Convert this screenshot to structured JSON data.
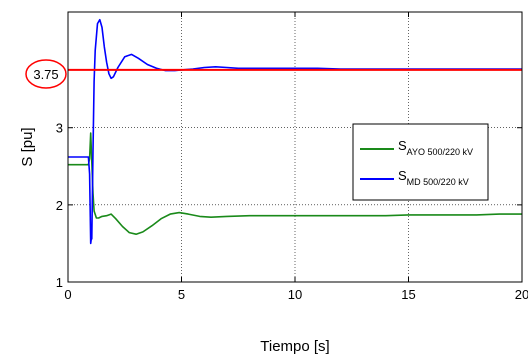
{
  "chart_data": {
    "type": "line",
    "title": "",
    "xlabel": "Tiempo [s]",
    "ylabel": "S [pu]",
    "xlim": [
      0,
      20
    ],
    "ylim": [
      1,
      4.5
    ],
    "xticks": [
      "0",
      "5",
      "10",
      "15",
      "20"
    ],
    "yticks": [
      "1",
      "2",
      "3"
    ],
    "grid": true,
    "legend_position": "right",
    "annotation": {
      "text": "3.75",
      "value": 3.75,
      "color": "#ff0000"
    },
    "series": [
      {
        "name_main": "S",
        "name_sub": "AYO 500/220 kV",
        "color": "#1a8a1a",
        "x": [
          0,
          0.9,
          0.95,
          1.0,
          1.05,
          1.1,
          1.15,
          1.25,
          1.35,
          1.5,
          1.7,
          1.9,
          2.1,
          2.4,
          2.7,
          3.0,
          3.3,
          3.7,
          4.1,
          4.5,
          4.9,
          5.3,
          5.8,
          6.3,
          7,
          8,
          9,
          10,
          11,
          12,
          13,
          14,
          15,
          16,
          17,
          18,
          19,
          20
        ],
        "y": [
          2.52,
          2.52,
          2.6,
          2.93,
          2.55,
          2.15,
          1.92,
          1.83,
          1.83,
          1.85,
          1.86,
          1.88,
          1.82,
          1.72,
          1.64,
          1.62,
          1.65,
          1.73,
          1.82,
          1.88,
          1.9,
          1.88,
          1.85,
          1.84,
          1.85,
          1.86,
          1.86,
          1.86,
          1.86,
          1.86,
          1.86,
          1.86,
          1.87,
          1.87,
          1.87,
          1.87,
          1.88,
          1.88
        ]
      },
      {
        "name_main": "S",
        "name_sub": "MD 500/220 kV",
        "color": "#0000ff",
        "x": [
          0,
          0.9,
          0.95,
          1.0,
          1.02,
          1.05,
          1.1,
          1.15,
          1.2,
          1.3,
          1.4,
          1.5,
          1.6,
          1.7,
          1.8,
          1.9,
          2.0,
          2.2,
          2.5,
          2.8,
          3.1,
          3.5,
          3.9,
          4.3,
          4.7,
          5.0,
          5.5,
          6.0,
          6.5,
          7.0,
          7.5,
          8,
          9,
          10,
          11,
          12,
          14,
          16,
          18,
          20
        ],
        "y": [
          2.62,
          2.62,
          2.4,
          1.5,
          1.55,
          1.56,
          2.7,
          3.6,
          4.0,
          4.35,
          4.4,
          4.3,
          4.05,
          3.85,
          3.7,
          3.64,
          3.66,
          3.78,
          3.92,
          3.95,
          3.9,
          3.82,
          3.77,
          3.74,
          3.74,
          3.75,
          3.76,
          3.78,
          3.79,
          3.78,
          3.77,
          3.77,
          3.77,
          3.77,
          3.77,
          3.76,
          3.76,
          3.76,
          3.76,
          3.76
        ]
      },
      {
        "name_main": "",
        "name_sub": "",
        "color": "#ff0000",
        "x": [
          0,
          20
        ],
        "y": [
          3.75,
          3.75
        ]
      }
    ]
  }
}
